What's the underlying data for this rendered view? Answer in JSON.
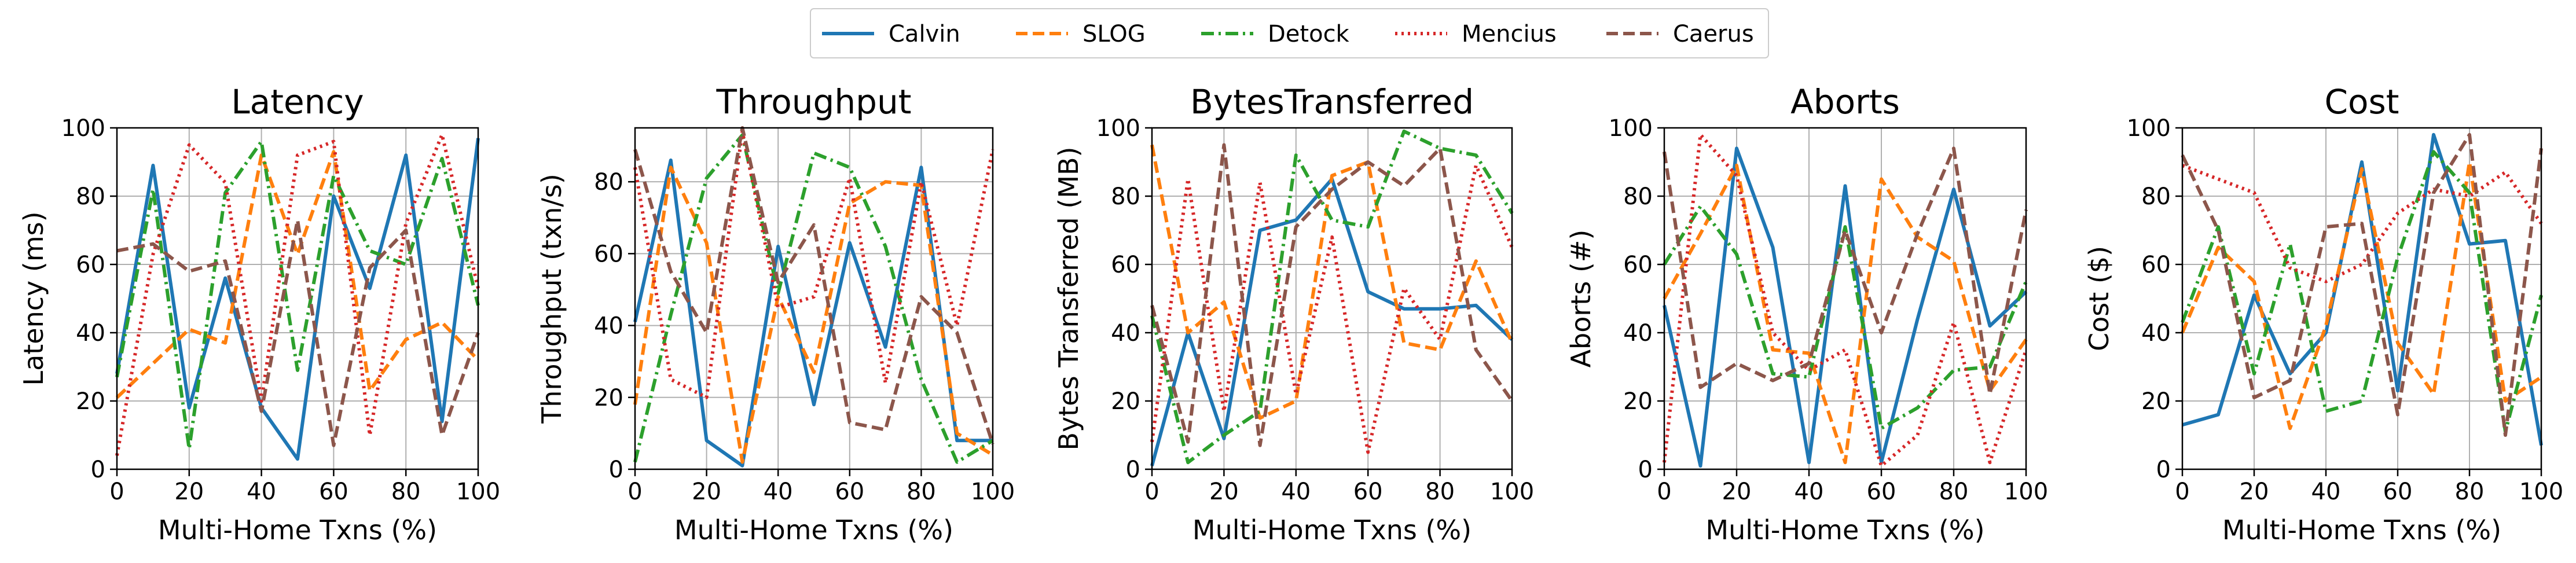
{
  "legend": {
    "placement": "top-center",
    "entries": [
      {
        "name": "Calvin",
        "color": "#1f77b4",
        "dash": "solid"
      },
      {
        "name": "SLOG",
        "color": "#ff7f0e",
        "dash": "dashed"
      },
      {
        "name": "Detock",
        "color": "#2ca02c",
        "dash": "dashdot"
      },
      {
        "name": "Mencius",
        "color": "#d62728",
        "dash": "dotted"
      },
      {
        "name": "Caerus",
        "color": "#8c564b",
        "dash": "dashed"
      }
    ]
  },
  "chart_data": [
    {
      "type": "line",
      "title": "Latency",
      "xlabel": "Multi-Home Txns (%)",
      "ylabel": "Latency (ms)",
      "xlim": [
        0,
        100
      ],
      "ylim": [
        0,
        100
      ],
      "xticks": [
        "0",
        "20",
        "40",
        "60",
        "80",
        "100"
      ],
      "yticks": [
        "0",
        "20",
        "40",
        "60",
        "80",
        "100"
      ],
      "grid": true,
      "x": [
        0,
        10,
        20,
        30,
        40,
        50,
        60,
        70,
        80,
        90,
        100
      ],
      "series": [
        {
          "name": "Calvin",
          "values": [
            28,
            89,
            18,
            56,
            18,
            3,
            80,
            53,
            92,
            14,
            97
          ]
        },
        {
          "name": "SLOG",
          "values": [
            21,
            31,
            41,
            37,
            92,
            63,
            93,
            23,
            38,
            43,
            32
          ]
        },
        {
          "name": "Detock",
          "values": [
            27,
            82,
            6,
            81,
            96,
            29,
            86,
            64,
            60,
            91,
            48
          ]
        },
        {
          "name": "Mencius",
          "values": [
            4,
            63,
            95,
            84,
            20,
            92,
            96,
            10,
            72,
            98,
            53
          ]
        },
        {
          "name": "Caerus",
          "values": [
            64,
            66,
            58,
            61,
            17,
            73,
            7,
            59,
            70,
            10,
            40
          ]
        }
      ]
    },
    {
      "type": "line",
      "title": "Throughput",
      "xlabel": "Multi-Home Txns (%)",
      "ylabel": "Throughput (txn/s)",
      "xlim": [
        0,
        100
      ],
      "ylim": [
        0,
        95
      ],
      "xticks": [
        "0",
        "20",
        "40",
        "60",
        "80",
        "100"
      ],
      "yticks": [
        "0",
        "20",
        "40",
        "60",
        "80"
      ],
      "grid": true,
      "x": [
        0,
        10,
        20,
        30,
        40,
        50,
        60,
        70,
        80,
        90,
        100
      ],
      "series": [
        {
          "name": "Calvin",
          "values": [
            41,
            86,
            8,
            1,
            62,
            18,
            63,
            34,
            84,
            8,
            8
          ]
        },
        {
          "name": "SLOG",
          "values": [
            18,
            84,
            63,
            2,
            48,
            27,
            74,
            80,
            79,
            10,
            4
          ]
        },
        {
          "name": "Detock",
          "values": [
            2,
            43,
            81,
            93,
            49,
            88,
            84,
            62,
            25,
            2,
            8
          ]
        },
        {
          "name": "Mencius",
          "values": [
            84,
            25,
            20,
            94,
            45,
            48,
            81,
            24,
            80,
            40,
            89
          ]
        },
        {
          "name": "Caerus",
          "values": [
            89,
            55,
            38,
            95,
            52,
            68,
            13,
            11,
            48,
            38,
            7
          ]
        }
      ]
    },
    {
      "type": "line",
      "title": "BytesTransferred",
      "xlabel": "Multi-Home Txns (%)",
      "ylabel": "Bytes Transferred (MB)",
      "xlim": [
        0,
        100
      ],
      "ylim": [
        0,
        100
      ],
      "xticks": [
        "0",
        "20",
        "40",
        "60",
        "80",
        "100"
      ],
      "yticks": [
        "0",
        "20",
        "40",
        "60",
        "80",
        "100"
      ],
      "grid": true,
      "x": [
        0,
        10,
        20,
        30,
        40,
        50,
        60,
        70,
        80,
        90,
        100
      ],
      "series": [
        {
          "name": "Calvin",
          "values": [
            1,
            40,
            9,
            70,
            73,
            85,
            52,
            47,
            47,
            48,
            38
          ]
        },
        {
          "name": "SLOG",
          "values": [
            95,
            40,
            49,
            15,
            20,
            86,
            90,
            37,
            35,
            61,
            37
          ]
        },
        {
          "name": "Detock",
          "values": [
            45,
            2,
            10,
            17,
            92,
            73,
            71,
            99,
            94,
            92,
            75
          ]
        },
        {
          "name": "Mencius",
          "values": [
            8,
            85,
            17,
            84,
            22,
            68,
            5,
            53,
            38,
            89,
            65
          ]
        },
        {
          "name": "Caerus",
          "values": [
            48,
            8,
            95,
            7,
            71,
            82,
            90,
            83,
            94,
            35,
            20
          ]
        }
      ]
    },
    {
      "type": "line",
      "title": "Aborts",
      "xlabel": "Multi-Home Txns (%)",
      "ylabel": "Aborts (#)",
      "xlim": [
        0,
        100
      ],
      "ylim": [
        0,
        100
      ],
      "xticks": [
        "0",
        "20",
        "40",
        "60",
        "80",
        "100"
      ],
      "yticks": [
        "0",
        "20",
        "40",
        "60",
        "80",
        "100"
      ],
      "grid": true,
      "x": [
        0,
        10,
        20,
        30,
        40,
        50,
        60,
        70,
        80,
        90,
        100
      ],
      "series": [
        {
          "name": "Calvin",
          "values": [
            48,
            1,
            94,
            65,
            2,
            83,
            2,
            44,
            82,
            42,
            52
          ]
        },
        {
          "name": "SLOG",
          "values": [
            50,
            69,
            89,
            35,
            34,
            2,
            85,
            68,
            61,
            23,
            38
          ]
        },
        {
          "name": "Detock",
          "values": [
            60,
            77,
            63,
            28,
            27,
            71,
            12,
            18,
            29,
            30,
            55
          ]
        },
        {
          "name": "Mencius",
          "values": [
            2,
            98,
            86,
            40,
            29,
            35,
            1,
            10,
            43,
            2,
            35
          ]
        },
        {
          "name": "Caerus",
          "values": [
            93,
            24,
            31,
            26,
            31,
            70,
            40,
            69,
            94,
            22,
            76
          ]
        }
      ]
    },
    {
      "type": "line",
      "title": "Cost",
      "xlabel": "Multi-Home Txns (%)",
      "ylabel": "Cost ($)",
      "xlim": [
        0,
        100
      ],
      "ylim": [
        0,
        100
      ],
      "xticks": [
        "0",
        "20",
        "40",
        "60",
        "80",
        "100"
      ],
      "yticks": [
        "0",
        "20",
        "40",
        "60",
        "80",
        "100"
      ],
      "grid": true,
      "x": [
        0,
        10,
        20,
        30,
        40,
        50,
        60,
        70,
        80,
        90,
        100
      ],
      "series": [
        {
          "name": "Calvin",
          "values": [
            13,
            16,
            51,
            28,
            40,
            90,
            23,
            98,
            66,
            67,
            7
          ]
        },
        {
          "name": "SLOG",
          "values": [
            40,
            65,
            55,
            12,
            42,
            88,
            37,
            22,
            90,
            20,
            27
          ]
        },
        {
          "name": "Detock",
          "values": [
            43,
            71,
            28,
            66,
            17,
            20,
            62,
            93,
            81,
            11,
            51
          ]
        },
        {
          "name": "Mencius",
          "values": [
            89,
            85,
            81,
            59,
            55,
            60,
            75,
            82,
            80,
            87,
            72
          ]
        },
        {
          "name": "Caerus",
          "values": [
            92,
            70,
            21,
            26,
            71,
            72,
            16,
            81,
            98,
            10,
            94
          ]
        }
      ]
    }
  ]
}
